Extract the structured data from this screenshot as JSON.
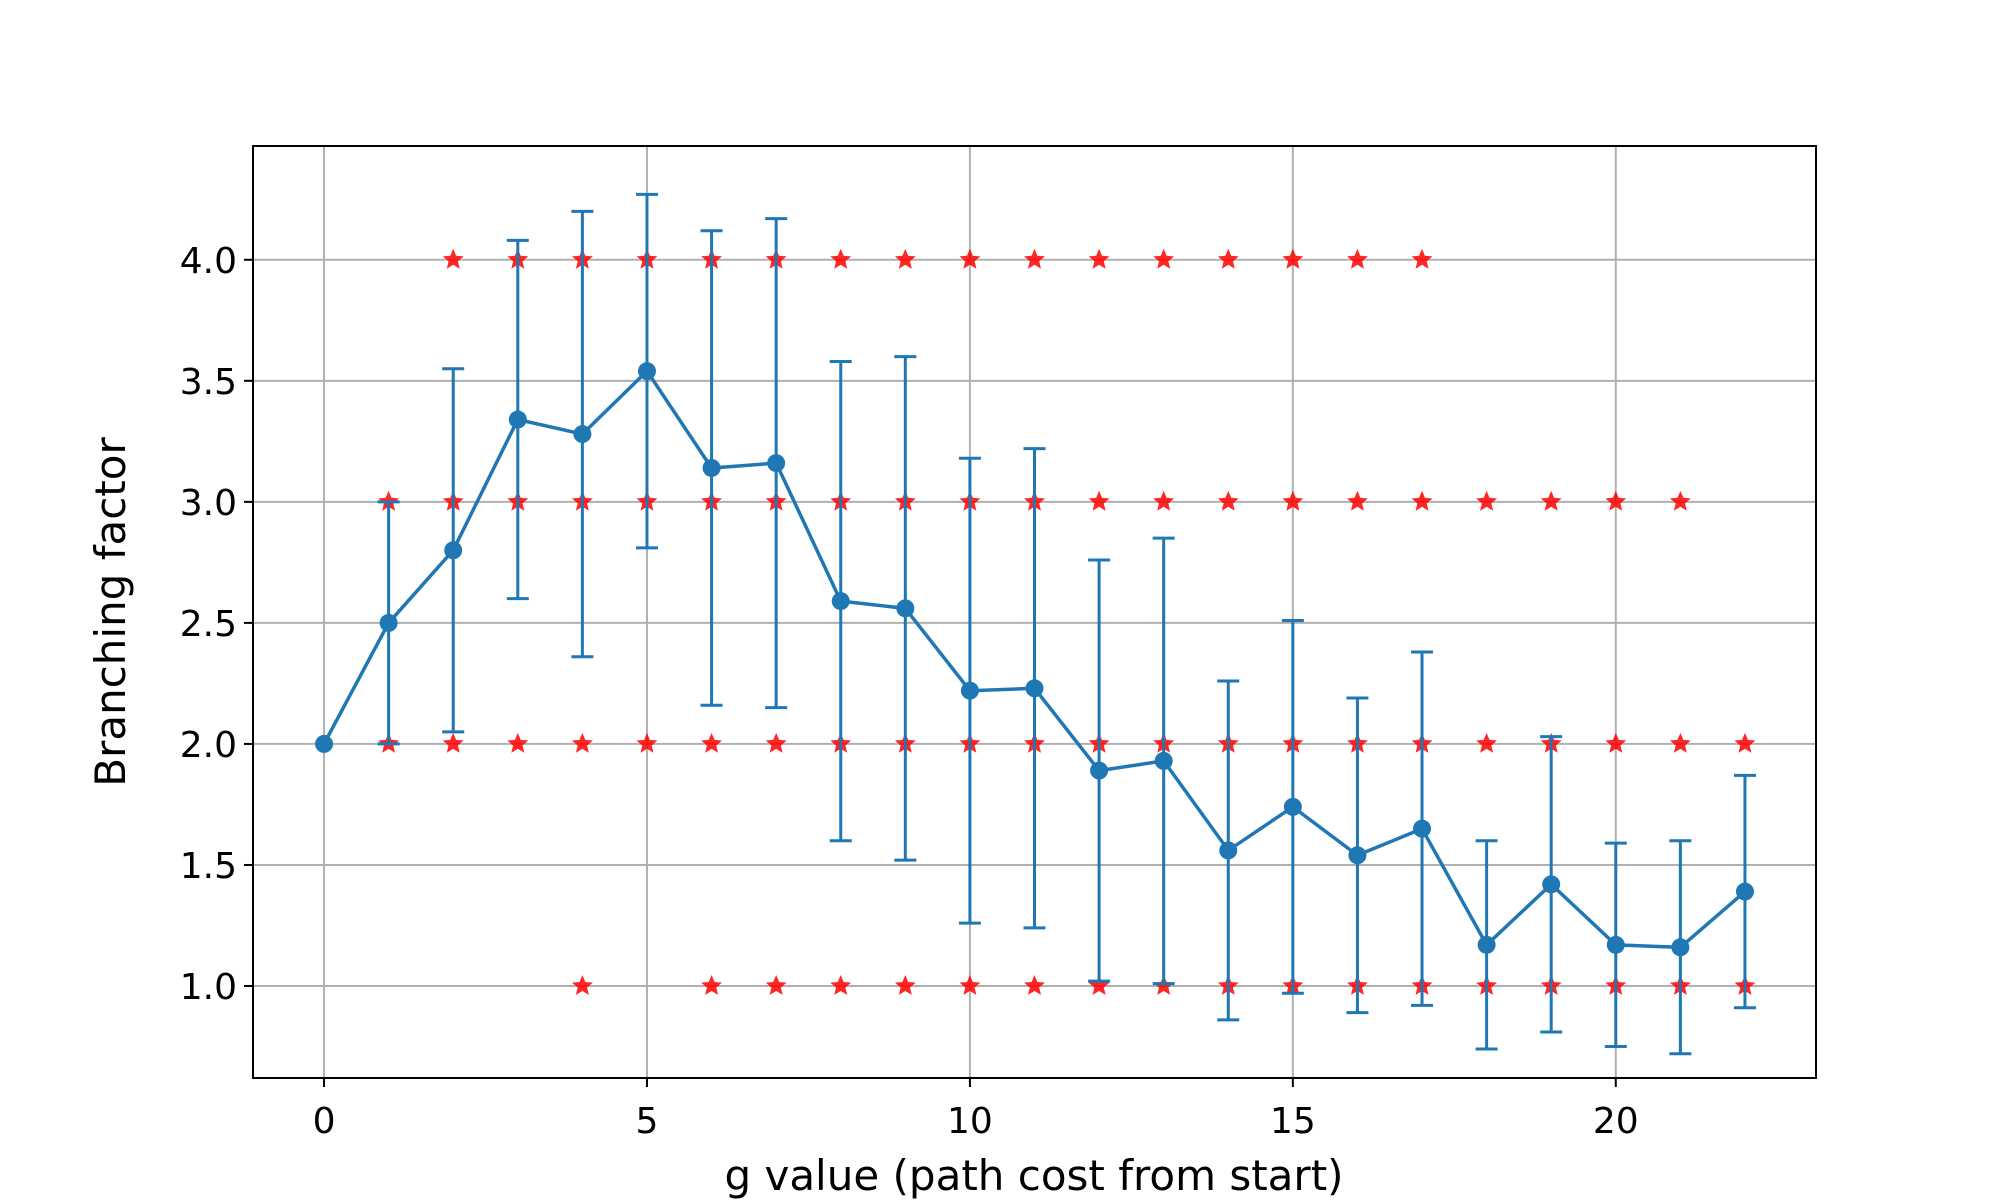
{
  "chart_data": {
    "type": "line",
    "title": "",
    "xlabel": "g value (path cost from start)",
    "ylabel": "Branching factor",
    "xlim": [
      -1.1,
      23.1
    ],
    "ylim": [
      0.62,
      4.47
    ],
    "x_ticks": [
      0,
      5,
      10,
      15,
      20
    ],
    "y_ticks": [
      1.0,
      1.5,
      2.0,
      2.5,
      3.0,
      3.5,
      4.0
    ],
    "grid": true,
    "legend": "none",
    "colors": {
      "mean": "#1f77b4",
      "samples": "#ff0000",
      "grid": "#b0b0b0"
    },
    "series": [
      {
        "kind": "mean_with_std_errorbars",
        "x": [
          0,
          1,
          2,
          3,
          4,
          5,
          6,
          7,
          8,
          9,
          10,
          11,
          12,
          13,
          14,
          15,
          16,
          17,
          18,
          19,
          20,
          21,
          22
        ],
        "y": [
          2.0,
          2.5,
          2.8,
          3.34,
          3.28,
          3.54,
          3.14,
          3.16,
          2.59,
          2.56,
          2.22,
          2.23,
          1.89,
          1.93,
          1.56,
          1.74,
          1.54,
          1.65,
          1.17,
          1.42,
          1.17,
          1.16,
          1.39
        ],
        "err": [
          0,
          0.5,
          0.75,
          0.74,
          0.92,
          0.73,
          0.98,
          1.01,
          0.99,
          1.04,
          0.96,
          0.99,
          0.87,
          0.92,
          0.7,
          0.77,
          0.65,
          0.73,
          0.43,
          0.61,
          0.42,
          0.44,
          0.48
        ]
      },
      {
        "kind": "samples",
        "marker": "star",
        "points": [
          [
            2,
            4
          ],
          [
            3,
            4
          ],
          [
            4,
            4
          ],
          [
            5,
            4
          ],
          [
            6,
            4
          ],
          [
            7,
            4
          ],
          [
            8,
            4
          ],
          [
            9,
            4
          ],
          [
            10,
            4
          ],
          [
            11,
            4
          ],
          [
            12,
            4
          ],
          [
            13,
            4
          ],
          [
            14,
            4
          ],
          [
            15,
            4
          ],
          [
            16,
            4
          ],
          [
            17,
            4
          ],
          [
            1,
            3
          ],
          [
            2,
            3
          ],
          [
            3,
            3
          ],
          [
            4,
            3
          ],
          [
            5,
            3
          ],
          [
            6,
            3
          ],
          [
            7,
            3
          ],
          [
            8,
            3
          ],
          [
            9,
            3
          ],
          [
            10,
            3
          ],
          [
            11,
            3
          ],
          [
            12,
            3
          ],
          [
            13,
            3
          ],
          [
            14,
            3
          ],
          [
            15,
            3
          ],
          [
            16,
            3
          ],
          [
            17,
            3
          ],
          [
            18,
            3
          ],
          [
            19,
            3
          ],
          [
            20,
            3
          ],
          [
            21,
            3
          ],
          [
            1,
            2
          ],
          [
            2,
            2
          ],
          [
            3,
            2
          ],
          [
            4,
            2
          ],
          [
            5,
            2
          ],
          [
            6,
            2
          ],
          [
            7,
            2
          ],
          [
            8,
            2
          ],
          [
            9,
            2
          ],
          [
            10,
            2
          ],
          [
            11,
            2
          ],
          [
            12,
            2
          ],
          [
            13,
            2
          ],
          [
            14,
            2
          ],
          [
            15,
            2
          ],
          [
            16,
            2
          ],
          [
            17,
            2
          ],
          [
            18,
            2
          ],
          [
            19,
            2
          ],
          [
            20,
            2
          ],
          [
            21,
            2
          ],
          [
            22,
            2
          ],
          [
            4,
            1
          ],
          [
            6,
            1
          ],
          [
            7,
            1
          ],
          [
            8,
            1
          ],
          [
            9,
            1
          ],
          [
            10,
            1
          ],
          [
            11,
            1
          ],
          [
            12,
            1
          ],
          [
            13,
            1
          ],
          [
            14,
            1
          ],
          [
            15,
            1
          ],
          [
            16,
            1
          ],
          [
            17,
            1
          ],
          [
            18,
            1
          ],
          [
            19,
            1
          ],
          [
            20,
            1
          ],
          [
            21,
            1
          ],
          [
            22,
            1
          ]
        ]
      }
    ]
  }
}
